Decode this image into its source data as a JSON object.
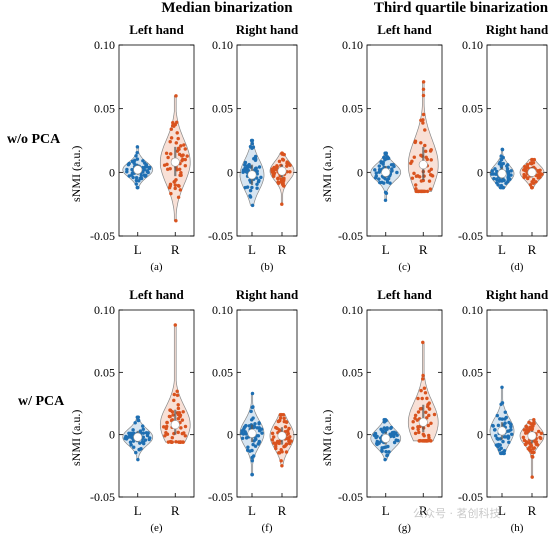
{
  "group_titles": [
    "Median binarization",
    "Third quartile binarization"
  ],
  "row_labels": [
    "w/o PCA",
    "w/ PCA"
  ],
  "y_axis_label": "sNMI (a.u.)",
  "watermark": "公众号 · 茗创科技",
  "colors": {
    "L": "#1f6fb2",
    "R": "#d9531e",
    "violin_edge": "#888888",
    "median": "#ffffff"
  },
  "chart_data": [
    {
      "type": "violin",
      "panel": "(a)",
      "title": "Left hand",
      "categories": [
        "L",
        "R"
      ],
      "ylim": [
        -0.05,
        0.1
      ],
      "yticks": [
        "0.10",
        "0.05",
        "0",
        "-0.05"
      ],
      "show_ylabel": true,
      "series": [
        {
          "name": "L",
          "median": 0.002,
          "q1": -0.002,
          "q3": 0.006,
          "min": -0.012,
          "max": 0.02
        },
        {
          "name": "R",
          "median": 0.008,
          "q1": -0.003,
          "q3": 0.02,
          "min": -0.038,
          "max": 0.06
        }
      ]
    },
    {
      "type": "violin",
      "panel": "(b)",
      "title": "Right hand",
      "categories": [
        "L",
        "R"
      ],
      "ylim": [
        -0.05,
        0.1
      ],
      "yticks": [
        "0.10",
        "0.05",
        "0",
        "-0.05"
      ],
      "show_ylabel": false,
      "series": [
        {
          "name": "L",
          "median": -0.002,
          "q1": -0.01,
          "q3": 0.006,
          "min": -0.026,
          "max": 0.025
        },
        {
          "name": "R",
          "median": 0.001,
          "q1": -0.004,
          "q3": 0.006,
          "min": -0.025,
          "max": 0.015
        }
      ]
    },
    {
      "type": "violin",
      "panel": "(c)",
      "title": "Left hand",
      "categories": [
        "L",
        "R"
      ],
      "ylim": [
        -0.05,
        0.1
      ],
      "yticks": [
        "0.10",
        "0.05",
        "0",
        "-0.05"
      ],
      "show_ylabel": true,
      "series": [
        {
          "name": "L",
          "median": 0.0,
          "q1": -0.004,
          "q3": 0.005,
          "min": -0.022,
          "max": 0.015
        },
        {
          "name": "R",
          "median": 0.006,
          "q1": -0.006,
          "q3": 0.02,
          "min": -0.015,
          "max": 0.071
        }
      ]
    },
    {
      "type": "violin",
      "panel": "(d)",
      "title": "Right hand",
      "categories": [
        "L",
        "R"
      ],
      "ylim": [
        -0.05,
        0.1
      ],
      "yticks": [
        "0.10",
        "0.05",
        "0",
        "-0.05"
      ],
      "show_ylabel": false,
      "series": [
        {
          "name": "L",
          "median": -0.001,
          "q1": -0.005,
          "q3": 0.004,
          "min": -0.012,
          "max": 0.018
        },
        {
          "name": "R",
          "median": 0.0,
          "q1": -0.004,
          "q3": 0.004,
          "min": -0.012,
          "max": 0.01
        }
      ]
    },
    {
      "type": "violin",
      "panel": "(e)",
      "title": "Left hand",
      "categories": [
        "L",
        "R"
      ],
      "ylim": [
        -0.05,
        0.1
      ],
      "yticks": [
        "0.10",
        "0.05",
        "0",
        "-0.05"
      ],
      "show_ylabel": true,
      "series": [
        {
          "name": "L",
          "median": -0.002,
          "q1": -0.006,
          "q3": 0.003,
          "min": -0.02,
          "max": 0.014
        },
        {
          "name": "R",
          "median": 0.008,
          "q1": 0.0,
          "q3": 0.02,
          "min": -0.006,
          "max": 0.088
        }
      ]
    },
    {
      "type": "violin",
      "panel": "(f)",
      "title": "Right hand",
      "categories": [
        "L",
        "R"
      ],
      "ylim": [
        -0.05,
        0.1
      ],
      "yticks": [
        "0.10",
        "0.05",
        "0",
        "-0.05"
      ],
      "show_ylabel": false,
      "series": [
        {
          "name": "L",
          "median": 0.001,
          "q1": -0.006,
          "q3": 0.008,
          "min": -0.032,
          "max": 0.033
        },
        {
          "name": "R",
          "median": -0.001,
          "q1": -0.008,
          "q3": 0.006,
          "min": -0.025,
          "max": 0.016
        }
      ]
    },
    {
      "type": "violin",
      "panel": "(g)",
      "title": "Left hand",
      "categories": [
        "L",
        "R"
      ],
      "ylim": [
        -0.05,
        0.1
      ],
      "yticks": [
        "0.10",
        "0.05",
        "0",
        "-0.05"
      ],
      "show_ylabel": true,
      "series": [
        {
          "name": "L",
          "median": -0.003,
          "q1": -0.008,
          "q3": 0.002,
          "min": -0.02,
          "max": 0.012
        },
        {
          "name": "R",
          "median": 0.01,
          "q1": 0.002,
          "q3": 0.024,
          "min": -0.005,
          "max": 0.074
        }
      ]
    },
    {
      "type": "violin",
      "panel": "(h)",
      "title": "Right hand",
      "categories": [
        "L",
        "R"
      ],
      "ylim": [
        -0.05,
        0.1
      ],
      "yticks": [
        "0.10",
        "0.05",
        "0",
        "-0.05"
      ],
      "show_ylabel": false,
      "series": [
        {
          "name": "L",
          "median": 0.003,
          "q1": -0.004,
          "q3": 0.01,
          "min": -0.015,
          "max": 0.038
        },
        {
          "name": "R",
          "median": -0.001,
          "q1": -0.007,
          "q3": 0.003,
          "min": -0.034,
          "max": 0.012
        }
      ]
    }
  ]
}
